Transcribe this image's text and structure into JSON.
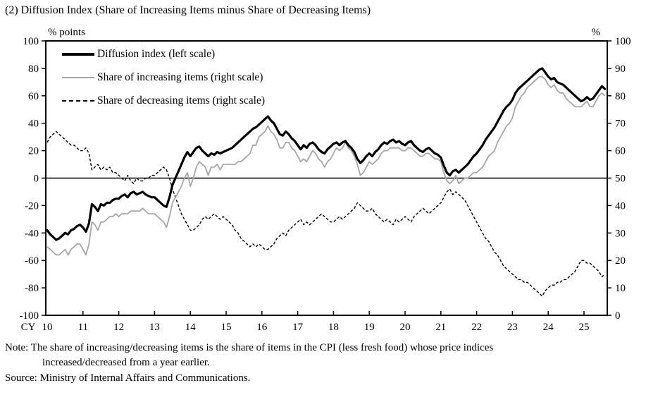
{
  "title": "(2) Diffusion Index (Share of Increasing Items minus Share of Decreasing Items)",
  "left_axis_label": "% points",
  "right_axis_label": "%",
  "x_axis_prefix": "CY",
  "legend": [
    {
      "label": "Diffusion index (left scale)"
    },
    {
      "label": "Share of increasing items (right scale)"
    },
    {
      "label": "Share of decreasing items (right scale)"
    }
  ],
  "note_line1": "Note: The share of increasing/decreasing items is the share of items in the CPI (less fresh food) whose price indices",
  "note_line2": "increased/decreased from a year earlier.",
  "source_text": "Source: Ministry of Internal Affairs and Communications.",
  "colors": {
    "line_black": "#000000",
    "line_gray": "#a6a6a6",
    "background": "#ffffff"
  },
  "chart_data": {
    "type": "line",
    "x_frequency": "monthly",
    "x_start": "2010-01",
    "x_end": "2025-08",
    "x_tick_labels": [
      "10",
      "11",
      "12",
      "13",
      "14",
      "15",
      "16",
      "17",
      "18",
      "19",
      "20",
      "21",
      "22",
      "23",
      "24",
      "25"
    ],
    "grid": false,
    "legend_position": "top-left-inside",
    "left_axis": {
      "label": "% points",
      "min": -100,
      "max": 100,
      "tick_step": 20,
      "ticks": [
        100,
        80,
        60,
        40,
        20,
        0,
        -20,
        -40,
        -60,
        -80,
        -100
      ]
    },
    "right_axis": {
      "label": "%",
      "min": 0,
      "max": 100,
      "tick_step": 10,
      "ticks": [
        100,
        90,
        80,
        70,
        60,
        50,
        40,
        30,
        20,
        10,
        0
      ]
    },
    "zero_line_left_value": 0,
    "series": [
      {
        "name": "Diffusion index (left scale)",
        "axis": "left",
        "style": "solid-thick-black",
        "values": [
          -38,
          -41,
          -43,
          -45,
          -44,
          -42,
          -40,
          -41,
          -38,
          -37,
          -35,
          -34,
          -36,
          -39,
          -33,
          -19,
          -21,
          -24,
          -19,
          -20,
          -18,
          -18,
          -16,
          -15,
          -15,
          -13,
          -12,
          -14,
          -11,
          -10,
          -12,
          -11,
          -10,
          -12,
          -13,
          -14,
          -14,
          -16,
          -18,
          -20,
          -21,
          -14,
          -5,
          0,
          5,
          10,
          15,
          19,
          16,
          19,
          22,
          23,
          20,
          18,
          16,
          18,
          17,
          19,
          18,
          19,
          20,
          21,
          22,
          24,
          26,
          28,
          30,
          32,
          34,
          36,
          37,
          39,
          41,
          43,
          45,
          42,
          40,
          36,
          32,
          31,
          34,
          32,
          29,
          27,
          24,
          21,
          24,
          22,
          25,
          26,
          24,
          21,
          19,
          18,
          21,
          23,
          25,
          26,
          24,
          26,
          27,
          24,
          22,
          19,
          14,
          11,
          13,
          16,
          18,
          16,
          19,
          21,
          24,
          26,
          25,
          27,
          28,
          26,
          27,
          25,
          24,
          26,
          27,
          24,
          22,
          20,
          19,
          21,
          22,
          20,
          18,
          17,
          15,
          9,
          4,
          2,
          5,
          6,
          4,
          6,
          8,
          10,
          13,
          16,
          18,
          21,
          24,
          28,
          31,
          34,
          37,
          41,
          45,
          49,
          52,
          54,
          57,
          62,
          65,
          67,
          69,
          71,
          73,
          75,
          77,
          79,
          80,
          77,
          74,
          72,
          73,
          70,
          69,
          68,
          66,
          64,
          62,
          60,
          58,
          56,
          57,
          59,
          57,
          58,
          61,
          64,
          67,
          65
        ]
      },
      {
        "name": "Share of increasing items (right scale)",
        "axis": "right",
        "style": "solid-gray",
        "values": [
          25,
          24,
          23,
          22,
          22,
          23,
          24,
          22,
          24,
          25,
          26,
          26,
          24,
          22,
          26,
          34,
          33,
          31,
          34,
          34,
          35,
          36,
          36,
          37,
          36,
          37,
          37,
          37,
          38,
          38,
          38,
          38,
          39,
          38,
          37,
          37,
          37,
          36,
          35,
          34,
          32,
          36,
          41,
          43,
          45,
          47,
          50,
          52,
          47,
          50,
          54,
          56,
          55,
          54,
          51,
          54,
          54,
          55,
          53,
          55,
          55,
          55,
          55,
          55,
          56,
          56,
          57,
          58,
          59,
          62,
          62,
          65,
          66,
          67,
          69,
          67,
          66,
          64,
          61,
          61,
          63,
          63,
          61,
          60,
          58,
          56,
          57,
          56,
          58,
          60,
          59,
          57,
          56,
          54,
          56,
          57,
          59,
          61,
          60,
          61,
          63,
          61,
          60,
          58,
          55,
          51,
          52,
          54,
          56,
          55,
          56,
          57,
          59,
          60,
          60,
          61,
          61,
          61,
          61,
          60,
          60,
          61,
          61,
          60,
          59,
          58,
          58,
          59,
          59,
          58,
          57,
          57,
          56,
          52,
          49,
          48,
          49,
          51,
          48,
          49,
          50,
          50,
          51,
          52,
          52,
          53,
          54,
          56,
          58,
          59,
          60,
          63,
          65,
          67,
          69,
          70,
          72,
          76,
          78,
          80,
          81,
          83,
          84,
          85,
          86,
          87,
          87,
          86,
          84,
          83,
          84,
          82,
          81,
          81,
          79,
          78,
          77,
          76,
          76,
          76,
          77,
          78,
          76,
          76,
          78,
          80,
          81,
          80
        ]
      },
      {
        "name": "Share of decreasing items (right scale)",
        "axis": "right",
        "style": "dashed-black",
        "values": [
          63,
          65,
          66,
          67,
          66,
          65,
          64,
          63,
          62,
          62,
          61,
          60,
          60,
          61,
          59,
          53,
          54,
          55,
          53,
          54,
          53,
          54,
          52,
          52,
          51,
          50,
          49,
          51,
          49,
          48,
          50,
          49,
          49,
          50,
          50,
          51,
          51,
          52,
          53,
          54,
          53,
          50,
          46,
          43,
          40,
          37,
          35,
          33,
          31,
          31,
          32,
          33,
          35,
          36,
          35,
          36,
          37,
          36,
          35,
          36,
          35,
          34,
          33,
          31,
          30,
          28,
          27,
          26,
          25,
          26,
          25,
          26,
          25,
          24,
          24,
          25,
          26,
          28,
          29,
          30,
          29,
          31,
          32,
          33,
          34,
          35,
          33,
          34,
          33,
          34,
          35,
          36,
          37,
          36,
          35,
          34,
          34,
          35,
          36,
          35,
          36,
          37,
          38,
          39,
          41,
          40,
          39,
          38,
          38,
          39,
          37,
          36,
          35,
          34,
          35,
          34,
          33,
          35,
          34,
          35,
          36,
          35,
          34,
          36,
          37,
          38,
          39,
          38,
          37,
          38,
          39,
          40,
          41,
          43,
          45,
          46,
          44,
          45,
          44,
          43,
          42,
          40,
          38,
          36,
          34,
          32,
          30,
          28,
          27,
          25,
          23,
          22,
          20,
          18,
          17,
          16,
          15,
          14,
          13,
          13,
          12,
          12,
          11,
          10,
          9,
          8,
          7,
          9,
          10,
          11,
          11,
          12,
          12,
          13,
          13,
          14,
          15,
          16,
          18,
          20,
          20,
          19,
          19,
          18,
          17,
          16,
          14,
          15
        ]
      }
    ]
  }
}
